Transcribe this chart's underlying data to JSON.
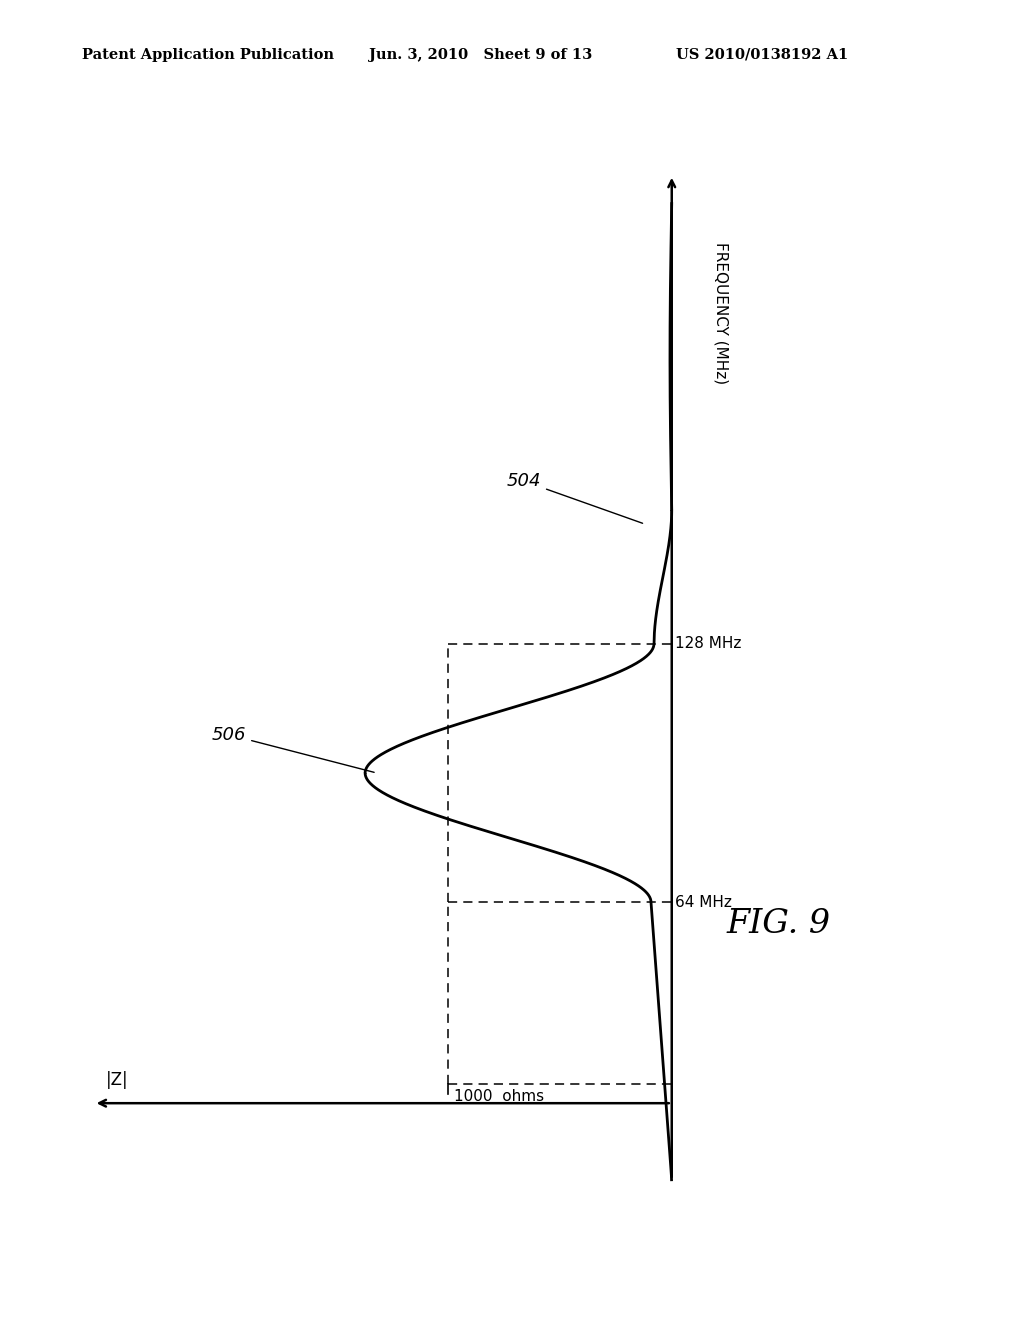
{
  "header_left": "Patent Application Publication",
  "header_mid": "Jun. 3, 2010   Sheet 9 of 13",
  "header_right": "US 2010/0138192 A1",
  "fig_label": "FIG. 9",
  "freq_label": "FREQUENCY (MHz)",
  "z_label": "|Z|",
  "label_1000ohms": "1000  ohms",
  "label_64mhz": "64 MHz",
  "label_128mhz": "128 MHz",
  "label_504": "504",
  "label_506": "506",
  "background_color": "#ffffff",
  "line_color": "#000000"
}
